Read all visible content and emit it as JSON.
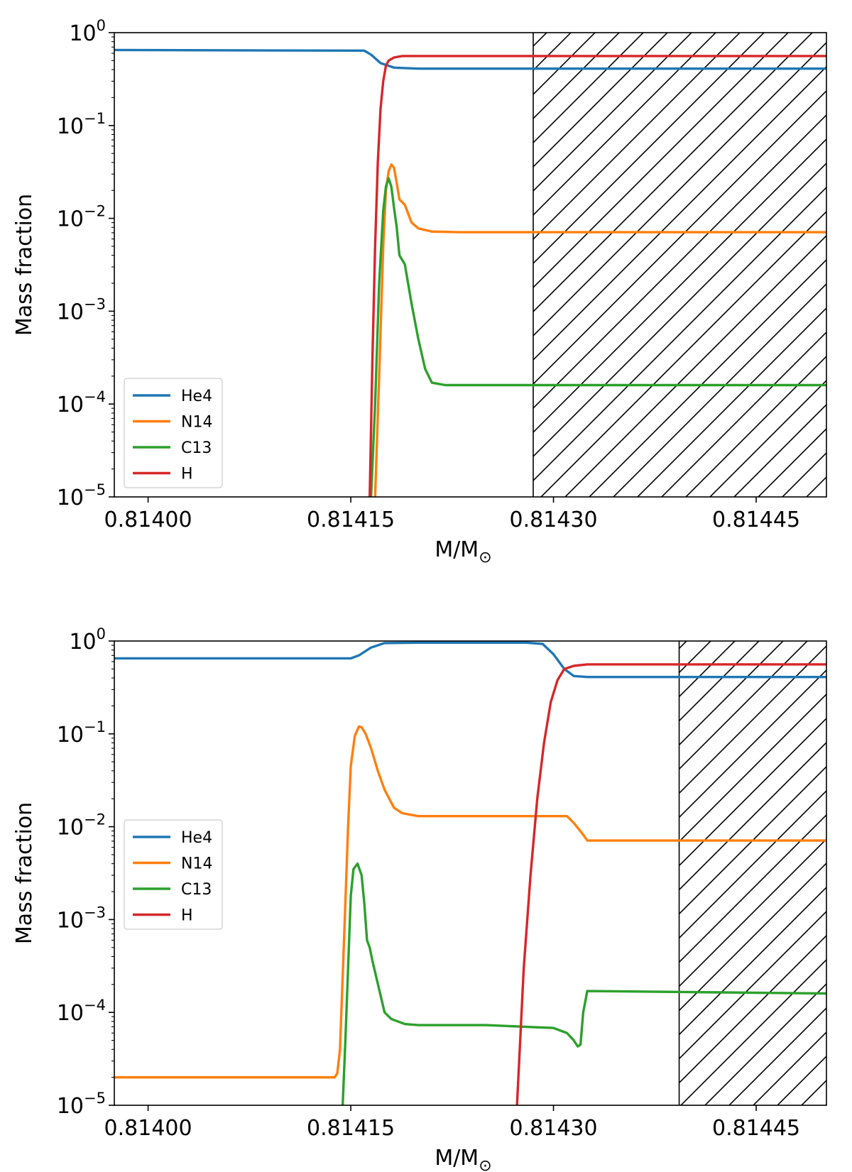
{
  "chart_data": [
    {
      "type": "line",
      "yscale": "log",
      "xlabel": "M/M",
      "xlabel_sub": "⊙",
      "ylabel": "Mass fraction",
      "xlim": [
        0.813975,
        0.814502
      ],
      "ylim_exp": [
        -5,
        0
      ],
      "xticks": [
        0.814,
        0.81415,
        0.8143,
        0.81445
      ],
      "xtick_labels": [
        "0.81400",
        "0.81415",
        "0.81430",
        "0.81445"
      ],
      "ytick_exps": [
        0,
        -1,
        -2,
        -3,
        -4,
        -5
      ],
      "ytick_base": "10",
      "ytick_sup": [
        "0",
        "−1",
        "−2",
        "−3",
        "−4",
        "−5"
      ],
      "legend_position": "lower-left",
      "hatched_region": {
        "x_start": 0.814285,
        "x_end": 0.814502
      },
      "series": [
        {
          "name": "He4",
          "color": "#1f77b4",
          "x": [
            0.813975,
            0.81416,
            0.814165,
            0.814172,
            0.814182,
            0.8142,
            0.81425,
            0.814502
          ],
          "values": [
            0.65,
            0.64,
            0.58,
            0.47,
            0.42,
            0.41,
            0.41,
            0.41
          ]
        },
        {
          "name": "N14",
          "color": "#ff7f0e",
          "x": [
            0.814168,
            0.814171,
            0.814174,
            0.814176,
            0.814178,
            0.81418,
            0.814182,
            0.814184,
            0.814186,
            0.81419,
            0.814195,
            0.8142,
            0.81421,
            0.81423,
            0.814502
          ],
          "values": [
            1e-05,
            0.0002,
            0.005,
            0.02,
            0.032,
            0.038,
            0.035,
            0.024,
            0.016,
            0.014,
            0.009,
            0.0078,
            0.0072,
            0.0071,
            0.0071
          ]
        },
        {
          "name": "C13",
          "color": "#2ca02c",
          "x": [
            0.814165,
            0.814168,
            0.814171,
            0.814174,
            0.814176,
            0.814178,
            0.81418,
            0.814182,
            0.814184,
            0.814186,
            0.81419,
            0.814195,
            0.8142,
            0.814205,
            0.81421,
            0.81422,
            0.814502
          ],
          "values": [
            1e-05,
            0.0001,
            0.002,
            0.012,
            0.022,
            0.027,
            0.022,
            0.013,
            0.008,
            0.004,
            0.0032,
            0.0012,
            0.0005,
            0.00024,
            0.00017,
            0.00016,
            0.00016
          ]
        },
        {
          "name": "H",
          "color": "#d62728",
          "x": [
            0.814164,
            0.814166,
            0.814168,
            0.81417,
            0.814172,
            0.814174,
            0.814176,
            0.814178,
            0.814182,
            0.814188,
            0.8142,
            0.814502
          ],
          "values": [
            1e-05,
            0.0003,
            0.005,
            0.04,
            0.15,
            0.3,
            0.44,
            0.5,
            0.54,
            0.56,
            0.56,
            0.56
          ]
        }
      ]
    },
    {
      "type": "line",
      "yscale": "log",
      "xlabel": "M/M",
      "xlabel_sub": "⊙",
      "ylabel": "Mass fraction",
      "xlim": [
        0.813975,
        0.814502
      ],
      "ylim_exp": [
        -5,
        0
      ],
      "xticks": [
        0.814,
        0.81415,
        0.8143,
        0.81445
      ],
      "xtick_labels": [
        "0.81400",
        "0.81415",
        "0.81430",
        "0.81445"
      ],
      "ytick_exps": [
        0,
        -1,
        -2,
        -3,
        -4,
        -5
      ],
      "ytick_base": "10",
      "ytick_sup": [
        "0",
        "−1",
        "−2",
        "−3",
        "−4",
        "−5"
      ],
      "legend_position": "center-left",
      "hatched_region": {
        "x_start": 0.814393,
        "x_end": 0.814502
      },
      "series": [
        {
          "name": "He4",
          "color": "#1f77b4",
          "x": [
            0.813975,
            0.81415,
            0.814156,
            0.814165,
            0.814175,
            0.8142,
            0.81428,
            0.814292,
            0.8143,
            0.814308,
            0.814315,
            0.814325,
            0.814502
          ],
          "values": [
            0.65,
            0.65,
            0.7,
            0.85,
            0.95,
            0.96,
            0.96,
            0.93,
            0.72,
            0.5,
            0.42,
            0.41,
            0.41
          ]
        },
        {
          "name": "N14",
          "color": "#ff7f0e",
          "x": [
            0.813975,
            0.81413,
            0.814138,
            0.81414,
            0.814142,
            0.814145,
            0.814148,
            0.81415,
            0.814153,
            0.814156,
            0.814158,
            0.814161,
            0.814165,
            0.81417,
            0.814175,
            0.814182,
            0.814188,
            0.8142,
            0.81422,
            0.81425,
            0.81428,
            0.81431,
            0.814315,
            0.814322,
            0.814325,
            0.814502
          ],
          "values": [
            2e-05,
            2e-05,
            2e-05,
            2.2e-05,
            4e-05,
            0.0006,
            0.01,
            0.045,
            0.095,
            0.12,
            0.118,
            0.1,
            0.07,
            0.04,
            0.025,
            0.016,
            0.014,
            0.013,
            0.013,
            0.013,
            0.013,
            0.013,
            0.011,
            0.0082,
            0.0071,
            0.0071
          ]
        },
        {
          "name": "C13",
          "color": "#2ca02c",
          "x": [
            0.814144,
            0.814146,
            0.814148,
            0.81415,
            0.814152,
            0.814155,
            0.814158,
            0.81416,
            0.814162,
            0.814164,
            0.814166,
            0.814175,
            0.81418,
            0.81419,
            0.8142,
            0.81425,
            0.8143,
            0.81431,
            0.814315,
            0.814318,
            0.81432,
            0.814322,
            0.814325,
            0.814502
          ],
          "values": [
            1e-05,
            5e-05,
            0.0003,
            0.0018,
            0.0035,
            0.004,
            0.003,
            0.0015,
            0.0006,
            0.0005,
            0.00036,
            0.0001,
            8.5e-05,
            7.5e-05,
            7.3e-05,
            7.3e-05,
            6.8e-05,
            6e-05,
            5e-05,
            4.3e-05,
            4.5e-05,
            0.0001,
            0.00017,
            0.00016
          ]
        },
        {
          "name": "H",
          "color": "#d62728",
          "x": [
            0.814273,
            0.814278,
            0.814283,
            0.814288,
            0.814293,
            0.814298,
            0.814303,
            0.814308,
            0.814315,
            0.814325,
            0.814502
          ],
          "values": [
            1e-05,
            0.0003,
            0.003,
            0.02,
            0.08,
            0.22,
            0.38,
            0.5,
            0.54,
            0.56,
            0.56
          ]
        }
      ]
    }
  ]
}
